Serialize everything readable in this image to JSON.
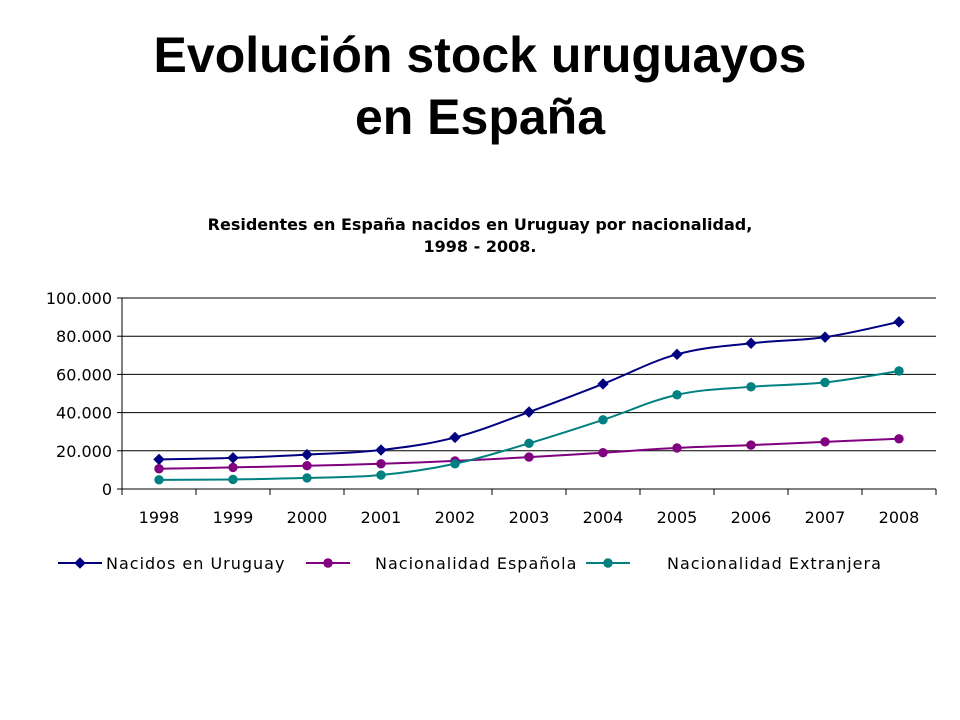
{
  "slide": {
    "title_line1": "Evolución stock uruguayos",
    "title_line2": "en España"
  },
  "chart_data": {
    "type": "line",
    "title": "Residentes en España nacidos en Uruguay por nacionalidad,",
    "subtitle": "1998 - 2008.",
    "xlabel": "",
    "ylabel": "",
    "categories": [
      "1998",
      "1999",
      "2000",
      "2001",
      "2002",
      "2003",
      "2004",
      "2005",
      "2006",
      "2007",
      "2008"
    ],
    "ylim": [
      0,
      100000
    ],
    "yticks": [
      0,
      20000,
      40000,
      60000,
      80000,
      100000
    ],
    "ytick_labels": [
      "0",
      "20.000",
      "40.000",
      "60.000",
      "80.000",
      "100.000"
    ],
    "grid": "horizontal",
    "legend_position": "bottom",
    "series": [
      {
        "name": "Nacidos en Uruguay",
        "color": "#000080",
        "marker": "diamond",
        "values": [
          15500,
          16300,
          18000,
          20400,
          27000,
          40300,
          55000,
          70500,
          76300,
          79500,
          87500
        ]
      },
      {
        "name": "Nacionalidad Española",
        "color": "#800080",
        "marker": "circle",
        "values": [
          10600,
          11300,
          12200,
          13200,
          14700,
          16700,
          19000,
          21500,
          23000,
          24700,
          26300
        ]
      },
      {
        "name": "Nacionalidad Extranjera",
        "color": "#008080",
        "marker": "circle",
        "values": [
          4800,
          5000,
          5800,
          7300,
          13200,
          23900,
          36200,
          49300,
          53500,
          55800,
          61800
        ]
      }
    ]
  }
}
